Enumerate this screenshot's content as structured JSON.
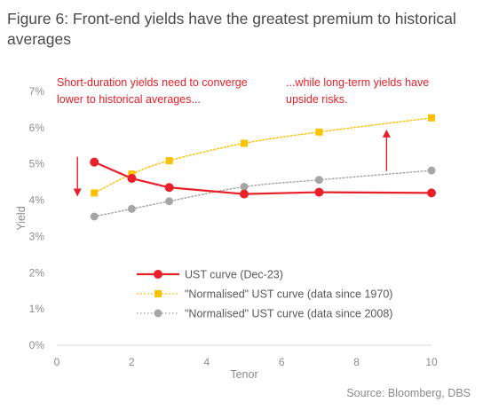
{
  "title": "Figure 6: Front-end yields have the greatest premium to historical averages",
  "source": "Source: Bloomberg, DBS",
  "chart_data": {
    "type": "line",
    "xlabel": "Tenor",
    "ylabel": "Yield",
    "xlim": [
      0,
      10
    ],
    "ylim": [
      0,
      7
    ],
    "x_ticks": [
      "0",
      "2",
      "4",
      "6",
      "8",
      "10"
    ],
    "y_ticks": [
      "0%",
      "1%",
      "2%",
      "3%",
      "4%",
      "5%",
      "6%",
      "7%"
    ],
    "grid": false,
    "legend_position": "bottom-center",
    "series": [
      {
        "name": "UST curve (Dec-23)",
        "color": "#e8202a",
        "style": "solid",
        "marker": "circle",
        "x": [
          1,
          2,
          3,
          5,
          7,
          10
        ],
        "y": [
          5.05,
          4.6,
          4.35,
          4.17,
          4.22,
          4.2
        ]
      },
      {
        "name": "\"Normalised\" UST curve (data since 1970)",
        "color": "#ffc000",
        "style": "dotted",
        "marker": "square",
        "x": [
          1,
          2,
          3,
          5,
          7,
          10
        ],
        "y": [
          4.2,
          4.72,
          5.09,
          5.57,
          5.88,
          6.27
        ]
      },
      {
        "name": "\"Normalised\" UST curve (data since 2008)",
        "color": "#a6a6a6",
        "style": "dotted",
        "marker": "circle",
        "x": [
          1,
          2,
          3,
          5,
          7,
          10
        ],
        "y": [
          3.55,
          3.76,
          3.97,
          4.37,
          4.56,
          4.82
        ]
      }
    ],
    "annotations": [
      {
        "lines": [
          "Short-duration yields need to converge",
          "lower to historical averages..."
        ]
      },
      {
        "lines": [
          "...while long-term yields have",
          "upside risks."
        ]
      }
    ],
    "arrows": [
      {
        "direction": "down",
        "x": 0.55,
        "y_from": 5.2,
        "y_to": 4.1
      },
      {
        "direction": "up",
        "x": 8.8,
        "y_from": 4.8,
        "y_to": 5.95
      }
    ],
    "colors": {
      "annotation": "#e8202a",
      "axis": "#d9d9d9",
      "text": "#8c8c8c"
    }
  }
}
